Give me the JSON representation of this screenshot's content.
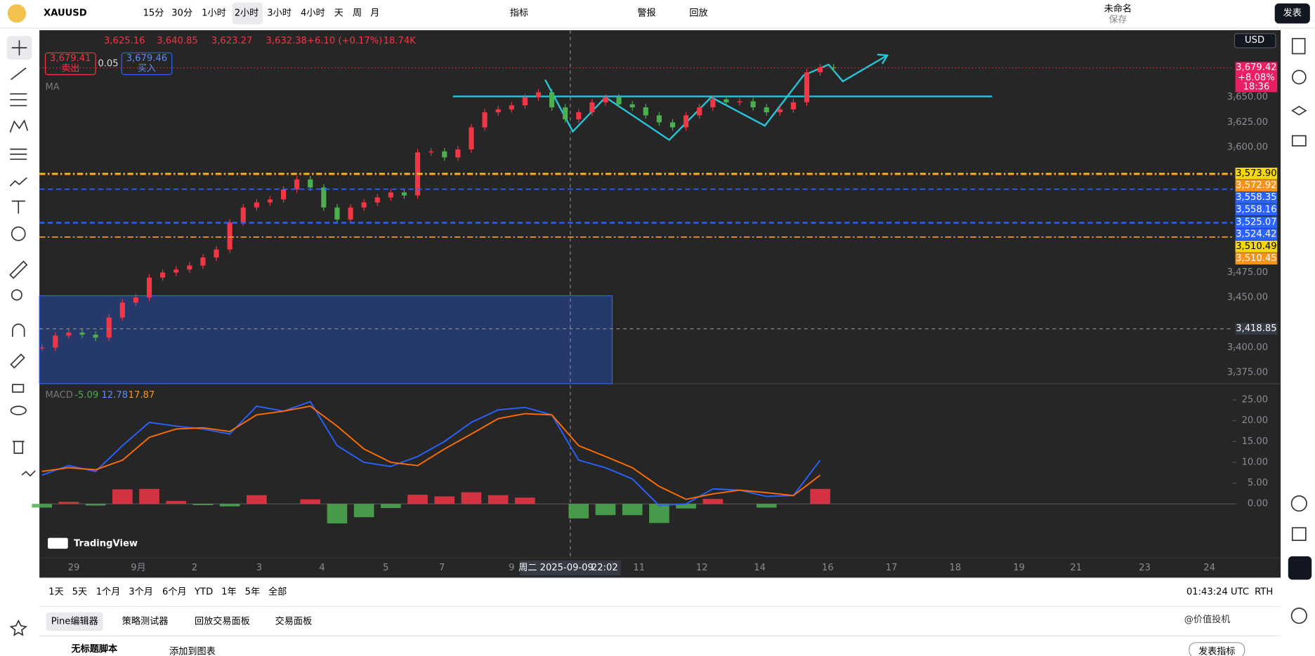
{
  "toolbar": {
    "symbol": "XAUUSD",
    "intervals": [
      "15分",
      "30分",
      "1小时",
      "2小时",
      "3小时",
      "4小时",
      "天",
      "周",
      "月"
    ],
    "indicators": "指标",
    "alert": "警报",
    "replay": "回放",
    "layout_name": "未命名",
    "save": "保存",
    "publish": "发表"
  },
  "legend": {
    "open": "3,625.16",
    "high": "3,640.85",
    "low": "3,623.27",
    "close": "3,632.38",
    "change": "+6.10 (+0.17%)",
    "volume": "18.74K",
    "sell_price": "3,679.41",
    "sell": "卖出",
    "spread": "0.05",
    "buy_price": "3,679.46",
    "buy": "买入",
    "ma": "MA",
    "macd": "MACD",
    "macd_values": [
      "-5.09",
      "12.78",
      "17.87"
    ]
  },
  "price_pane": {
    "currency": "USD",
    "ylim": [
      3364,
      3717
    ],
    "yticks": [
      {
        "value": 3375,
        "label": "3,375.00"
      },
      {
        "value": 3400,
        "label": "3,400.00"
      },
      {
        "value": 3450,
        "label": "3,450.00"
      },
      {
        "value": 3475,
        "label": "3,475.00"
      },
      {
        "value": 3600,
        "label": "3,600.00"
      },
      {
        "value": 3625,
        "label": "3,625.00"
      },
      {
        "value": 3650,
        "label": "3,650.00"
      }
    ],
    "closes": [
      3400,
      3412,
      3415,
      3413,
      3410,
      3430,
      3445,
      3450,
      3470,
      3475,
      3478,
      3482,
      3490,
      3498,
      3525,
      3540,
      3545,
      3548,
      3558,
      3568,
      3560,
      3540,
      3528,
      3540,
      3545,
      3550,
      3555,
      3552,
      3595,
      3596,
      3590,
      3598,
      3620,
      3635,
      3638,
      3642,
      3650,
      3655,
      3640,
      3628,
      3635,
      3645,
      3650,
      3643,
      3640,
      3632,
      3625,
      3620,
      3632,
      3640,
      3648,
      3645,
      3646,
      3640,
      3635,
      3638,
      3645,
      3675,
      3680,
      3679
    ],
    "up_color": "#f23645",
    "down_color": "#4caf50",
    "levels": [
      {
        "value": 3573.9,
        "label": "3,573.90",
        "color": "#f5d90a"
      },
      {
        "value": 3572.92,
        "label": "3,572.92",
        "color": "#f7931a"
      },
      {
        "value": 3558.35,
        "label": "3,558.35",
        "color": "#2962ff"
      },
      {
        "value": 3558.16,
        "label": "3,558.16",
        "color": "#2962ff"
      },
      {
        "value": 3525.07,
        "label": "3,525.07",
        "color": "#2962ff"
      },
      {
        "value": 3524.42,
        "label": "3,524.42",
        "color": "#2962ff"
      },
      {
        "value": 3510.49,
        "label": "3,510.49",
        "color": "#f5d90a"
      },
      {
        "value": 3510.45,
        "label": "3,510.45",
        "color": "#f7931a"
      }
    ],
    "last": {
      "value": 3679.42,
      "label": "3,679.42",
      "change": "+8.08%",
      "countdown": "18:36"
    },
    "crosshair": {
      "value": 3418.85,
      "label": "3,418.85"
    }
  },
  "macd_pane": {
    "ylim": [
      -13,
      28.9
    ],
    "yticks": [
      {
        "value": 0,
        "label": "0.00"
      },
      {
        "value": 5,
        "label": "5.00"
      },
      {
        "value": 10,
        "label": "10.00"
      },
      {
        "value": 15,
        "label": "15.00"
      },
      {
        "value": 20,
        "label": "20.00"
      },
      {
        "value": 25,
        "label": "25.00"
      }
    ],
    "macd": [
      6.9,
      9.2,
      7.8,
      14,
      19.6,
      18.7,
      18,
      16.8,
      23.5,
      22.3,
      24.6,
      14,
      10,
      9,
      11.4,
      15,
      19.6,
      22.6,
      23.2,
      21.4,
      10.5,
      8.7,
      6,
      -0.4,
      0,
      3.6,
      3.3,
      1.8,
      2,
      10.5
    ],
    "signal": [
      7.8,
      8.7,
      8.2,
      10.5,
      16,
      18,
      18.3,
      17.4,
      21.4,
      22.3,
      23.5,
      18.7,
      13.2,
      10,
      9.2,
      13.2,
      16.8,
      20.5,
      21.7,
      21.4,
      14,
      11.4,
      8.7,
      4.2,
      1.1,
      2.4,
      3.3,
      2.7,
      2,
      6.9
    ],
    "histogram": [
      -0.9,
      0.5,
      -0.4,
      3.5,
      3.6,
      0.7,
      -0.3,
      -0.6,
      2.1,
      0,
      1.1,
      -4.7,
      -3.2,
      -1,
      2.2,
      1.8,
      2.8,
      2.1,
      1.5,
      0,
      -3.5,
      -2.7,
      -2.7,
      -4.6,
      -1.1,
      1.2,
      0,
      -0.9,
      0,
      3.6
    ],
    "macd_color": "#2962ff",
    "signal_color": "#ff6d00"
  },
  "time_axis": {
    "labels": [
      "29",
      "9月",
      "2",
      "3",
      "4",
      "5",
      "7",
      "9",
      "11",
      "12",
      "14",
      "16",
      "17",
      "18",
      "19",
      "21",
      "23",
      "24"
    ],
    "crosshair_date": "周二 2025-09-09",
    "crosshair_time": "22:02"
  },
  "bottom_bar": {
    "ranges": [
      "1天",
      "5天",
      "1个月",
      "3个月",
      "6个月",
      "YTD",
      "1年",
      "5年",
      "全部"
    ],
    "clock": "01:43:24 UTC",
    "session": "RTH"
  },
  "panels": {
    "tabs": [
      "Pine编辑器",
      "策略测试器",
      "回放交易面板",
      "交易面板"
    ],
    "script_name": "无标题脚本",
    "add_to_chart": "添加到图表",
    "publish_indicator": "发表指标"
  },
  "watermark": {
    "brand": "TradingView",
    "author": "@价值投机"
  }
}
